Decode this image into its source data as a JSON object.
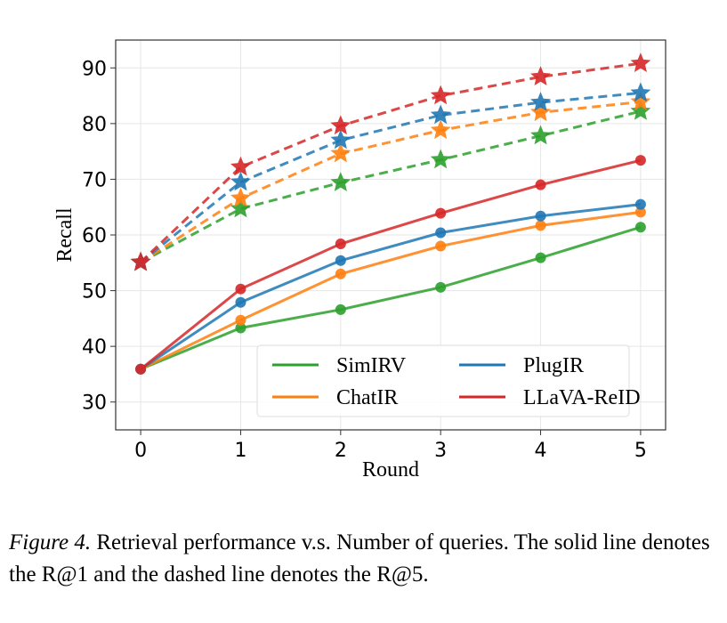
{
  "chart_data": {
    "type": "line",
    "xlabel": "Round",
    "ylabel": "Recall",
    "x": [
      0,
      1,
      2,
      3,
      4,
      5
    ],
    "xticks": [
      "0",
      "1",
      "2",
      "3",
      "4",
      "5"
    ],
    "yticks": [
      "30",
      "40",
      "50",
      "60",
      "70",
      "80",
      "90"
    ],
    "ylim": [
      25,
      95
    ],
    "xlim": [
      -0.25,
      5.25
    ],
    "grid": true,
    "legend_position": "lower-right",
    "series": [
      {
        "name": "SimIRV",
        "color": "#2ca02c",
        "metric": "R@1",
        "style": "solid",
        "marker": "circle",
        "values": [
          35.9,
          43.3,
          46.6,
          50.6,
          55.9,
          61.4
        ]
      },
      {
        "name": "ChatIR",
        "color": "#ff7f0e",
        "metric": "R@1",
        "style": "solid",
        "marker": "circle",
        "values": [
          35.9,
          44.7,
          53.0,
          58.0,
          61.7,
          64.1
        ]
      },
      {
        "name": "PlugIR",
        "color": "#1f77b4",
        "metric": "R@1",
        "style": "solid",
        "marker": "circle",
        "values": [
          35.9,
          47.9,
          55.4,
          60.4,
          63.4,
          65.5
        ]
      },
      {
        "name": "LLaVA-ReID",
        "color": "#d62728",
        "metric": "R@1",
        "style": "solid",
        "marker": "circle",
        "values": [
          35.9,
          50.3,
          58.4,
          63.9,
          69.0,
          73.4
        ]
      },
      {
        "name": "SimIRV",
        "color": "#2ca02c",
        "metric": "R@5",
        "style": "dashed",
        "marker": "star",
        "values": [
          55.1,
          64.7,
          69.4,
          73.5,
          77.8,
          82.2
        ]
      },
      {
        "name": "ChatIR",
        "color": "#ff7f0e",
        "metric": "R@5",
        "style": "dashed",
        "marker": "star",
        "values": [
          55.1,
          66.6,
          74.6,
          78.8,
          82.0,
          83.9
        ]
      },
      {
        "name": "PlugIR",
        "color": "#1f77b4",
        "metric": "R@5",
        "style": "dashed",
        "marker": "star",
        "values": [
          55.1,
          69.5,
          77.0,
          81.5,
          83.8,
          85.5
        ]
      },
      {
        "name": "LLaVA-ReID",
        "color": "#d62728",
        "metric": "R@5",
        "style": "dashed",
        "marker": "star",
        "values": [
          55.1,
          72.2,
          79.6,
          85.0,
          88.4,
          90.8
        ]
      }
    ],
    "legend": [
      "SimIRV",
      "PlugIR",
      "ChatIR",
      "LLaVA-ReID"
    ]
  },
  "caption": {
    "label": "Figure 4.",
    "text": " Retrieval performance v.s. Number of queries. The solid line denotes the R@1 and the dashed line denotes the R@5."
  }
}
